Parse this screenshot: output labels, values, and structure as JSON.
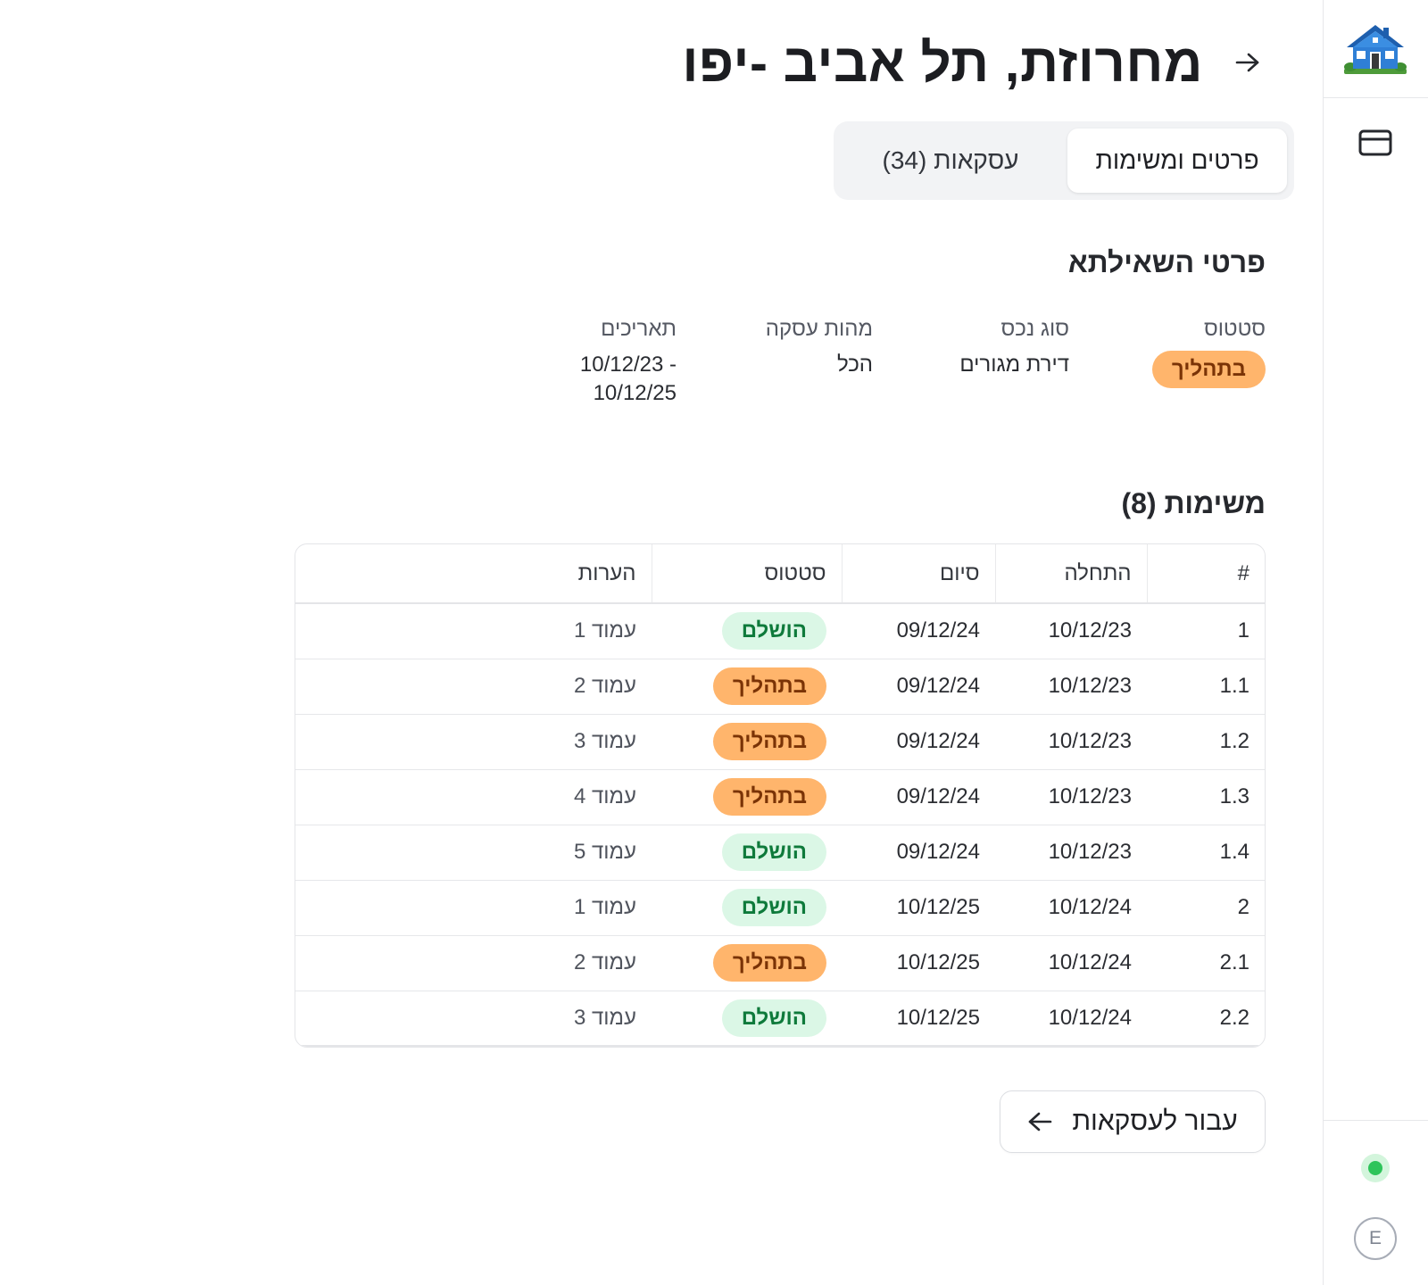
{
  "sidebar": {
    "logo_icon": "house-icon",
    "nav_icon": "credit-card-icon",
    "status_color": "#2ec45a",
    "avatar_initial": "E"
  },
  "header": {
    "title": "מחרוזת, תל אביב -יפו",
    "back_icon": "arrow-right-icon"
  },
  "tabs": [
    {
      "label": "פרטים ומשימות",
      "active": true
    },
    {
      "label": "עסקאות (34)",
      "active": false
    }
  ],
  "query": {
    "title": "פרטי השאילתא",
    "fields": {
      "status_label": "סטטוס",
      "status_value": "בתהליך",
      "asset_type_label": "סוג נכס",
      "asset_type_value": "דירת מגורים",
      "deal_type_label": "מהות עסקה",
      "deal_type_value": "הכל",
      "dates_label": "תאריכים",
      "dates_value_line1": "10/12/23 -",
      "dates_value_line2": "10/12/25"
    }
  },
  "tasks": {
    "title": "משימות (8)",
    "columns": [
      "#",
      "התחלה",
      "סיום",
      "סטטוס",
      "הערות"
    ],
    "rows": [
      {
        "num": "1",
        "start": "10/12/23",
        "end": "09/12/24",
        "status": "הושלם",
        "notes": "עמוד 1"
      },
      {
        "num": "1.1",
        "start": "10/12/23",
        "end": "09/12/24",
        "status": "בתהליך",
        "notes": "עמוד 2"
      },
      {
        "num": "1.2",
        "start": "10/12/23",
        "end": "09/12/24",
        "status": "בתהליך",
        "notes": "עמוד 3"
      },
      {
        "num": "1.3",
        "start": "10/12/23",
        "end": "09/12/24",
        "status": "בתהליך",
        "notes": "עמוד 4"
      },
      {
        "num": "1.4",
        "start": "10/12/23",
        "end": "09/12/24",
        "status": "הושלם",
        "notes": "עמוד 5"
      },
      {
        "num": "2",
        "start": "10/12/24",
        "end": "10/12/25",
        "status": "הושלם",
        "notes": "עמוד 1"
      },
      {
        "num": "2.1",
        "start": "10/12/24",
        "end": "10/12/25",
        "status": "בתהליך",
        "notes": "עמוד 2"
      },
      {
        "num": "2.2",
        "start": "10/12/24",
        "end": "10/12/25",
        "status": "הושלם",
        "notes": "עמוד 3"
      }
    ]
  },
  "cta": {
    "label": "עבור לעסקאות",
    "icon": "arrow-left-icon"
  },
  "colors": {
    "in_progress_bg": "#ffb56c",
    "in_progress_text": "#7a3306",
    "done_bg": "#dbf7e6",
    "done_text": "#0e7a3b"
  }
}
